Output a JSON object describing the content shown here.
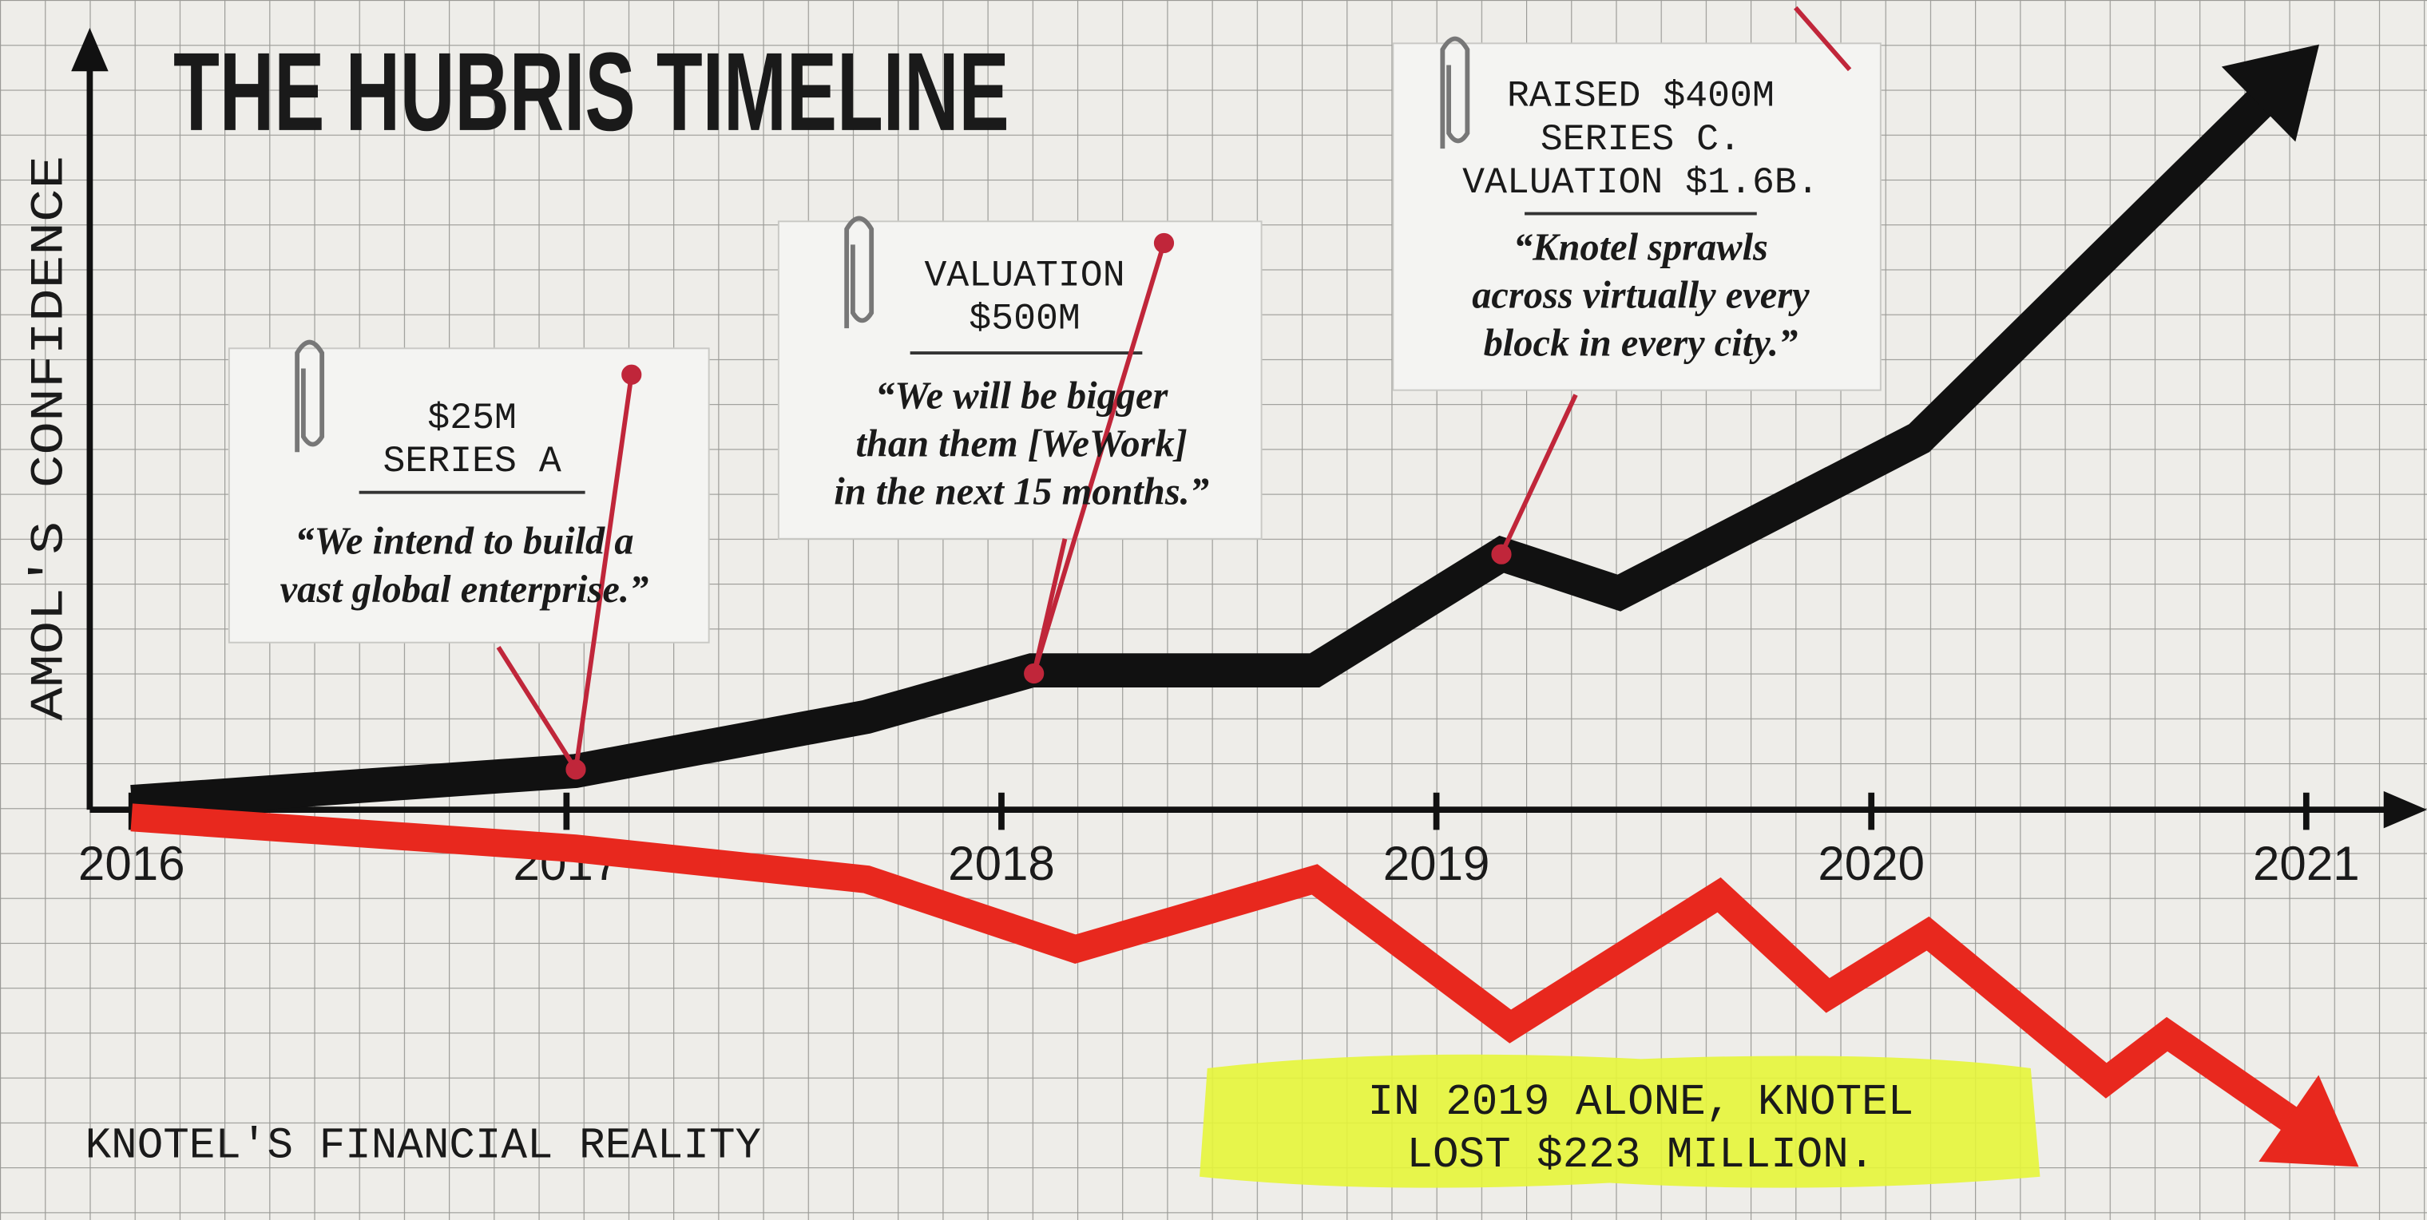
{
  "chart_data": {
    "type": "line",
    "title": "THE HUBRIS TIMELINE",
    "y_label": "AMOL'S CONFIDENCE",
    "xlim": [
      2016,
      2021
    ],
    "xticks": [
      2016,
      2017,
      2018,
      2019,
      2020,
      2021
    ],
    "ylim": [
      -50,
      100
    ],
    "series": [
      {
        "name": "AMOL'S CONFIDENCE",
        "color": "#111111",
        "x": [
          2016,
          2017.02,
          2017.69,
          2018.07,
          2018.72,
          2019.15,
          2019.42,
          2020.11,
          2020.96
        ],
        "values": [
          1,
          5,
          12,
          18,
          18,
          33,
          28,
          48,
          95
        ]
      },
      {
        "name": "KNOTEL'S FINANCIAL REALITY",
        "color": "#e8281e",
        "x": [
          2016,
          2017.02,
          2017.69,
          2018.17,
          2018.72,
          2019.17,
          2019.65,
          2019.9,
          2020.13,
          2020.54,
          2020.68,
          2021.04
        ],
        "values": [
          -1,
          -5,
          -9,
          -18,
          -9,
          -28,
          -11,
          -24,
          -16,
          -35,
          -29,
          -43
        ]
      }
    ],
    "annotations": [
      {
        "heading": [
          "$25M",
          "SERIES A"
        ],
        "quote": [
          "“We intend to build a",
          "vast global enterprise.”"
        ]
      },
      {
        "heading": [
          "VALUATION",
          "$500M"
        ],
        "quote": [
          "“We will be bigger",
          "than them [WeWork]",
          "in the next 15 months.”"
        ]
      },
      {
        "heading": [
          "RAISED $400M",
          "SERIES C.",
          "VALUATION $1.6B."
        ],
        "quote": [
          "“Knotel sprawls",
          "across virtually every",
          "block in every city.”"
        ]
      }
    ],
    "callout": [
      "IN 2019 ALONE, KNOTEL",
      "LOST $223 MILLION."
    ]
  }
}
